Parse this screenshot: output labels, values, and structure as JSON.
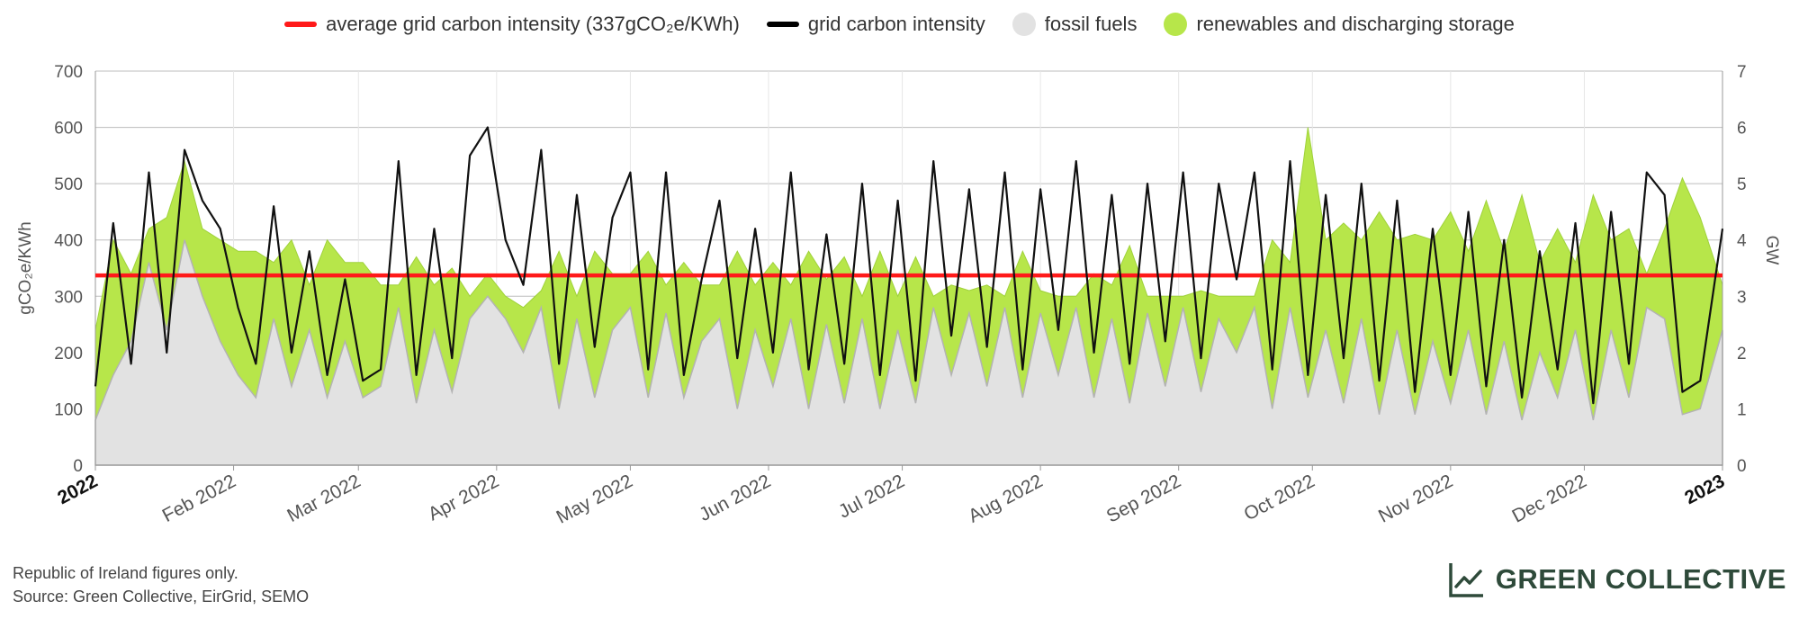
{
  "legend": [
    {
      "label": "average grid carbon intensity (337gCO₂e/KWh)",
      "color": "#ff1a1a",
      "kind": "line",
      "icon": "red-line-swatch"
    },
    {
      "label": "grid carbon intensity",
      "color": "#000000",
      "kind": "line",
      "icon": "black-line-swatch"
    },
    {
      "label": "fossil fuels",
      "color": "#e2e2e2",
      "kind": "dot",
      "icon": "grey-dot-swatch"
    },
    {
      "label": "renewables and discharging storage",
      "color": "#b7e64a",
      "kind": "dot",
      "icon": "green-dot-swatch"
    }
  ],
  "footer": {
    "note_line1": "Republic of Ireland figures only.",
    "note_line2": "Source: Green Collective, EirGrid, SEMO"
  },
  "brand": {
    "name": "GREEN COLLECTIVE",
    "icon": "line-chart-logo-icon",
    "color": "#2e4a3a"
  },
  "chart_data": {
    "type": "area",
    "left_axis": {
      "label": "gCO₂e/KWh",
      "ticks": [
        "0",
        "100",
        "200",
        "300",
        "400",
        "500",
        "600",
        "700"
      ],
      "ylim": [
        0,
        700
      ]
    },
    "right_axis": {
      "label": "GW",
      "ticks": [
        "0",
        "1",
        "2",
        "3",
        "4",
        "5",
        "6",
        "7"
      ],
      "ylim": [
        0,
        7
      ]
    },
    "x_ticks": [
      {
        "label": "2022",
        "day": 0,
        "bold": true
      },
      {
        "label": "Feb 2022",
        "day": 31,
        "bold": false
      },
      {
        "label": "Mar 2022",
        "day": 59,
        "bold": false
      },
      {
        "label": "Apr 2022",
        "day": 90,
        "bold": false
      },
      {
        "label": "May 2022",
        "day": 120,
        "bold": false
      },
      {
        "label": "Jun 2022",
        "day": 151,
        "bold": false
      },
      {
        "label": "Jul 2022",
        "day": 181,
        "bold": false
      },
      {
        "label": "Aug 2022",
        "day": 212,
        "bold": false
      },
      {
        "label": "Sep 2022",
        "day": 243,
        "bold": false
      },
      {
        "label": "Oct 2022",
        "day": 273,
        "bold": false
      },
      {
        "label": "Nov 2022",
        "day": 304,
        "bold": false
      },
      {
        "label": "Dec 2022",
        "day": 334,
        "bold": false
      },
      {
        "label": "2023",
        "day": 365,
        "bold": true
      }
    ],
    "xlim": [
      0,
      365
    ],
    "grid": true,
    "legend_position": "top",
    "average_intensity": 337,
    "colors": {
      "average": "#ff1a1a",
      "intensity": "#111111",
      "fossil": "#e2e2e2",
      "fossil_edge": "#b3b3b3",
      "renewables": "#b7e64a",
      "renewables_edge": "#9fd23a"
    },
    "series": [
      {
        "name": "average grid carbon intensity (337gCO₂e/KWh)",
        "axis": "left",
        "x": [
          0,
          365
        ],
        "values": [
          337,
          337
        ]
      },
      {
        "name": "grid carbon intensity",
        "axis": "left",
        "x": [
          0,
          4,
          8,
          12,
          16,
          20,
          24,
          28,
          32,
          36,
          40,
          44,
          48,
          52,
          56,
          60,
          64,
          68,
          72,
          76,
          80,
          84,
          88,
          92,
          96,
          100,
          104,
          108,
          112,
          116,
          120,
          124,
          128,
          132,
          136,
          140,
          144,
          148,
          152,
          156,
          160,
          164,
          168,
          172,
          176,
          180,
          184,
          188,
          192,
          196,
          200,
          204,
          208,
          212,
          216,
          220,
          224,
          228,
          232,
          236,
          240,
          244,
          248,
          252,
          256,
          260,
          264,
          268,
          272,
          276,
          280,
          284,
          288,
          292,
          296,
          300,
          304,
          308,
          312,
          316,
          320,
          324,
          328,
          332,
          336,
          340,
          344,
          348,
          352,
          356,
          360,
          365
        ],
        "values": [
          140,
          430,
          180,
          520,
          200,
          560,
          470,
          420,
          280,
          180,
          460,
          200,
          380,
          160,
          330,
          150,
          170,
          540,
          160,
          420,
          190,
          550,
          600,
          400,
          320,
          560,
          180,
          480,
          210,
          440,
          520,
          170,
          520,
          160,
          330,
          470,
          190,
          420,
          200,
          520,
          170,
          410,
          180,
          500,
          160,
          470,
          150,
          540,
          230,
          490,
          210,
          520,
          170,
          490,
          240,
          540,
          200,
          480,
          180,
          500,
          220,
          520,
          190,
          500,
          330,
          520,
          170,
          540,
          160,
          480,
          190,
          500,
          150,
          470,
          130,
          420,
          160,
          450,
          140,
          400,
          120,
          380,
          170,
          430,
          110,
          450,
          180,
          520,
          480,
          130,
          150,
          420
        ]
      },
      {
        "name": "fossil fuels",
        "axis": "right",
        "x": [
          0,
          4,
          8,
          12,
          16,
          20,
          24,
          28,
          32,
          36,
          40,
          44,
          48,
          52,
          56,
          60,
          64,
          68,
          72,
          76,
          80,
          84,
          88,
          92,
          96,
          100,
          104,
          108,
          112,
          116,
          120,
          124,
          128,
          132,
          136,
          140,
          144,
          148,
          152,
          156,
          160,
          164,
          168,
          172,
          176,
          180,
          184,
          188,
          192,
          196,
          200,
          204,
          208,
          212,
          216,
          220,
          224,
          228,
          232,
          236,
          240,
          244,
          248,
          252,
          256,
          260,
          264,
          268,
          272,
          276,
          280,
          284,
          288,
          292,
          296,
          300,
          304,
          308,
          312,
          316,
          320,
          324,
          328,
          332,
          336,
          340,
          344,
          348,
          352,
          356,
          360,
          365
        ],
        "values": [
          0.8,
          1.6,
          2.2,
          3.6,
          2.4,
          4.0,
          3.0,
          2.2,
          1.6,
          1.2,
          2.6,
          1.4,
          2.4,
          1.2,
          2.2,
          1.2,
          1.4,
          2.8,
          1.1,
          2.4,
          1.3,
          2.6,
          3.0,
          2.6,
          2.0,
          2.8,
          1.0,
          2.6,
          1.2,
          2.4,
          2.8,
          1.2,
          2.7,
          1.2,
          2.2,
          2.6,
          1.0,
          2.4,
          1.4,
          2.6,
          1.0,
          2.5,
          1.1,
          2.6,
          1.0,
          2.4,
          1.1,
          2.8,
          1.6,
          2.7,
          1.4,
          2.8,
          1.2,
          2.7,
          1.6,
          2.8,
          1.2,
          2.6,
          1.1,
          2.7,
          1.4,
          2.8,
          1.3,
          2.6,
          2.0,
          2.8,
          1.0,
          2.8,
          1.2,
          2.4,
          1.1,
          2.6,
          0.9,
          2.4,
          0.9,
          2.2,
          1.1,
          2.4,
          0.9,
          2.2,
          0.8,
          2.0,
          1.2,
          2.4,
          0.8,
          2.4,
          1.2,
          2.8,
          2.6,
          0.9,
          1.0,
          2.4
        ]
      },
      {
        "name": "renewables and discharging storage",
        "axis": "right",
        "x": [
          0,
          4,
          8,
          12,
          16,
          20,
          24,
          28,
          32,
          36,
          40,
          44,
          48,
          52,
          56,
          60,
          64,
          68,
          72,
          76,
          80,
          84,
          88,
          92,
          96,
          100,
          104,
          108,
          112,
          116,
          120,
          124,
          128,
          132,
          136,
          140,
          144,
          148,
          152,
          156,
          160,
          164,
          168,
          172,
          176,
          180,
          184,
          188,
          192,
          196,
          200,
          204,
          208,
          212,
          216,
          220,
          224,
          228,
          232,
          236,
          240,
          244,
          248,
          252,
          256,
          260,
          264,
          268,
          272,
          276,
          280,
          284,
          288,
          292,
          296,
          300,
          304,
          308,
          312,
          316,
          320,
          324,
          328,
          332,
          336,
          340,
          344,
          348,
          352,
          356,
          360,
          365
        ],
        "values": [
          1.6,
          2.4,
          1.2,
          0.6,
          2.0,
          1.4,
          1.2,
          1.8,
          2.2,
          2.6,
          1.0,
          2.6,
          0.8,
          2.8,
          1.4,
          2.4,
          1.8,
          0.4,
          2.6,
          0.8,
          2.2,
          0.4,
          0.4,
          0.4,
          0.8,
          0.3,
          2.8,
          0.4,
          2.6,
          1.0,
          0.6,
          2.6,
          0.5,
          2.4,
          1.0,
          0.6,
          2.8,
          0.8,
          2.2,
          0.6,
          2.8,
          0.8,
          2.6,
          0.4,
          2.8,
          0.6,
          2.6,
          0.2,
          1.6,
          0.4,
          1.8,
          0.2,
          2.6,
          0.4,
          1.4,
          0.2,
          2.2,
          0.6,
          2.8,
          0.3,
          1.6,
          0.2,
          1.8,
          0.4,
          1.0,
          0.2,
          3.0,
          0.8,
          4.8,
          1.6,
          3.2,
          1.4,
          3.6,
          1.6,
          3.2,
          1.8,
          3.4,
          1.4,
          3.8,
          1.6,
          4.0,
          1.6,
          3.0,
          1.2,
          4.0,
          1.6,
          3.0,
          0.6,
          1.6,
          4.2,
          3.4,
          0.8
        ]
      }
    ]
  }
}
